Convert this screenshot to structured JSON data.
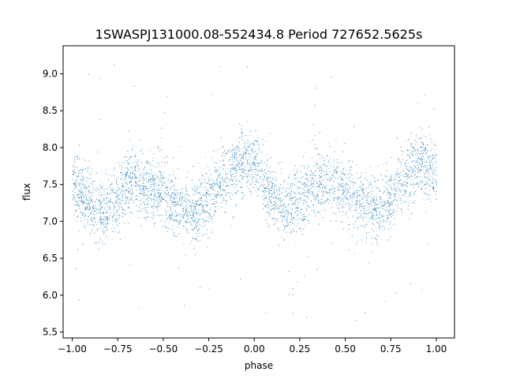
{
  "chart_data": {
    "type": "scatter",
    "title": "1SWASPJ131000.08-552434.8 Period 727652.5625s",
    "xlabel": "phase",
    "ylabel": "flux",
    "xlim": [
      -1.05,
      1.1
    ],
    "ylim": [
      5.42,
      9.38
    ],
    "grid": false,
    "legend": "none",
    "x_ticks": [
      -1.0,
      -0.75,
      -0.5,
      -0.25,
      0.0,
      0.25,
      0.5,
      0.75,
      1.0
    ],
    "x_tick_labels": [
      "−1.00",
      "−0.75",
      "−0.50",
      "−0.25",
      "0.00",
      "0.25",
      "0.50",
      "0.75",
      "1.00"
    ],
    "y_ticks": [
      5.5,
      6.0,
      6.5,
      7.0,
      7.5,
      8.0,
      8.5,
      9.0
    ],
    "y_tick_labels": [
      "5.5",
      "6.0",
      "6.5",
      "7.0",
      "7.5",
      "8.0",
      "8.5",
      "9.0"
    ],
    "series": [
      {
        "color": "#1f77b4",
        "marker": "point",
        "x_range": [
          -1.0,
          1.0
        ],
        "trend_phase": [
          -1.0,
          -0.9,
          -0.83,
          -0.75,
          -0.68,
          -0.6,
          -0.5,
          -0.42,
          -0.33,
          -0.25,
          -0.17,
          -0.05,
          0.0,
          0.07,
          0.17,
          0.25,
          0.33,
          0.4,
          0.5,
          0.58,
          0.67,
          0.75,
          0.83,
          0.9,
          1.0
        ],
        "trend_flux": [
          7.5,
          7.25,
          7.15,
          7.3,
          7.6,
          7.5,
          7.4,
          7.2,
          7.15,
          7.3,
          7.6,
          7.85,
          7.75,
          7.4,
          7.15,
          7.3,
          7.55,
          7.55,
          7.4,
          7.2,
          7.15,
          7.3,
          7.6,
          7.85,
          7.6
        ],
        "scatter_sigma": 0.22,
        "outlier_range": [
          5.6,
          9.2
        ]
      }
    ]
  }
}
